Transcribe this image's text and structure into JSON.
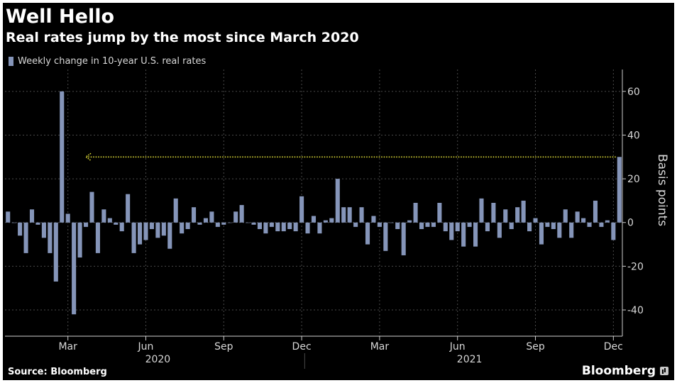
{
  "title": "Well Hello",
  "subtitle": "Real rates jump by the most since March 2020",
  "source": "Source: Bloomberg",
  "brand": "Bloomberg",
  "colors": {
    "background": "#000000",
    "bar": "#8595b9",
    "grid": "#4a4a4a",
    "axis": "#cfcfcf",
    "text": "#d8d8d8",
    "arrow": "#e8e53a"
  },
  "chart_data": {
    "type": "bar",
    "title": "Well Hello",
    "subtitle": "Real rates jump by the most since March 2020",
    "legend": [
      "Weekly change in 10-year U.S. real rates"
    ],
    "series": [
      {
        "name": "Weekly change in 10-year U.S. real rates",
        "values": [
          5,
          0,
          -6,
          -14,
          6,
          -1,
          -7,
          -14,
          -27,
          60,
          4,
          -42,
          -16,
          -2,
          14,
          -14,
          6,
          2,
          -1,
          -4,
          13,
          -14,
          -10,
          -8,
          -3,
          -7,
          -6,
          -12,
          11,
          -5,
          -3,
          7,
          -1,
          2,
          5,
          -2,
          -1,
          0,
          5,
          8,
          0,
          -1,
          -3,
          -5,
          -2,
          -4,
          -4,
          -3,
          -4,
          12,
          -5,
          3,
          -5,
          1,
          2,
          20,
          7,
          7,
          -2,
          7,
          -10,
          3,
          -2,
          -13,
          0,
          -3,
          -15,
          1,
          9,
          -3,
          -2,
          -2,
          9,
          -4,
          -8,
          -4,
          -11,
          -2,
          -11,
          11,
          -4,
          9,
          -7,
          6,
          -3,
          7,
          10,
          -4,
          2,
          -10,
          -2,
          -3,
          -7,
          6,
          -7,
          5,
          2,
          -2,
          10,
          -2,
          1,
          -8,
          30
        ]
      }
    ],
    "x_tick_labels": [
      "Mar",
      "Jun",
      "Sep",
      "Dec",
      "Mar",
      "Jun",
      "Sep",
      "Dec"
    ],
    "x_tick_bar_index": [
      10,
      23,
      36,
      49,
      62,
      75,
      88,
      101
    ],
    "year_labels": [
      "2020",
      "2021"
    ],
    "year_label_bar_index": [
      25,
      77
    ],
    "year_divider_bar_index": 50,
    "ylabel": "Basis points",
    "y_ticks": [
      -40,
      -20,
      0,
      20,
      40,
      60
    ],
    "y_tick_labels": [
      "-40",
      "-20",
      "0",
      "20",
      "40",
      "60"
    ],
    "ylim": [
      -52,
      70
    ],
    "grid": true,
    "annotation": {
      "type": "arrow",
      "value": 30,
      "from_bar_index": 102,
      "to_bar_index": 13
    }
  }
}
